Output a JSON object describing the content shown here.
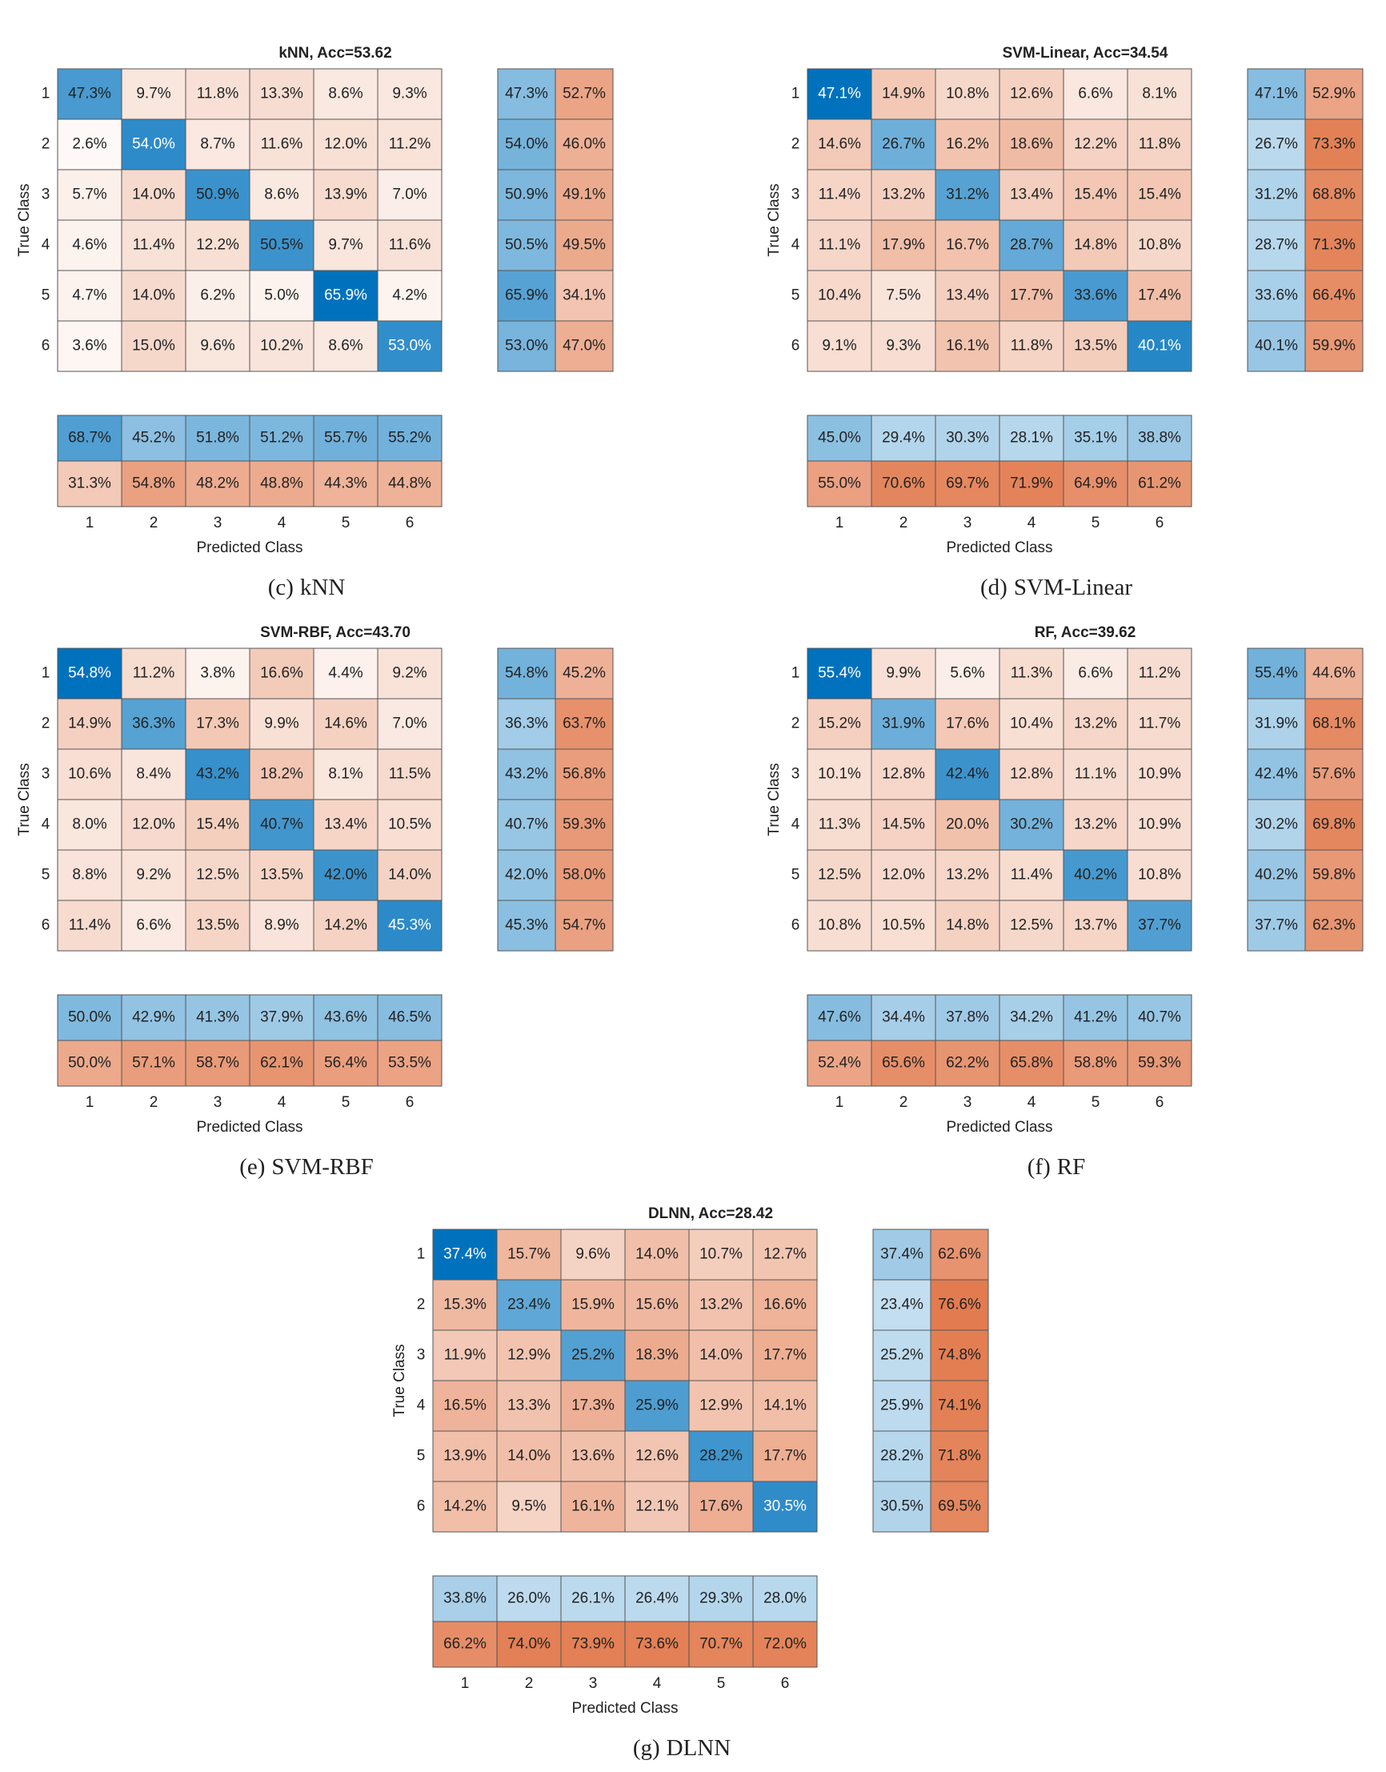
{
  "chart_data": [
    {
      "type": "confusion_matrix",
      "title": "kNN, Acc=53.62",
      "panel": "(c)",
      "caption": "kNN",
      "xlabel": "Predicted Class",
      "ylabel": "True Class",
      "classes": [
        "1",
        "2",
        "3",
        "4",
        "5",
        "6"
      ],
      "colors": {
        "correct": "#0072bd",
        "incorrect": "#d95319"
      },
      "values": [
        [
          47.3,
          9.7,
          11.8,
          13.3,
          8.6,
          9.3
        ],
        [
          2.6,
          54.0,
          8.7,
          11.6,
          12.0,
          11.2
        ],
        [
          5.7,
          14.0,
          50.9,
          8.6,
          13.9,
          7.0
        ],
        [
          4.6,
          11.4,
          12.2,
          50.5,
          9.7,
          11.6
        ],
        [
          4.7,
          14.0,
          6.2,
          5.0,
          65.9,
          4.2
        ],
        [
          3.6,
          15.0,
          9.6,
          10.2,
          8.6,
          53.0
        ]
      ],
      "value_labels": [
        [
          "47.3%",
          "9.7%",
          "11.8%",
          "13.3%",
          "8.6%",
          "9.3%"
        ],
        [
          "2.6%",
          "54.0%",
          "8.7%",
          "11.6%",
          "12.0%",
          "11.2%"
        ],
        [
          "5.7%",
          "14.0%",
          "50.9%",
          "8.6%",
          "13.9%",
          "7.0%"
        ],
        [
          "4.6%",
          "11.4%",
          "12.2%",
          "50.5%",
          "9.7%",
          "11.6%"
        ],
        [
          "4.7%",
          "14.0%",
          "6.2%",
          "5.0%",
          "65.9%",
          "4.2%"
        ],
        [
          "3.6%",
          "15.0%",
          "9.6%",
          "10.2%",
          "8.6%",
          "53.0%"
        ]
      ],
      "row_summary": {
        "values": [
          [
            47.3,
            52.7
          ],
          [
            54.0,
            46.0
          ],
          [
            50.9,
            49.1
          ],
          [
            50.5,
            49.5
          ],
          [
            65.9,
            34.1
          ],
          [
            53.0,
            47.0
          ]
        ],
        "value_labels": [
          [
            "47.3%",
            "52.7%"
          ],
          [
            "54.0%",
            "46.0%"
          ],
          [
            "50.9%",
            "49.1%"
          ],
          [
            "50.5%",
            "49.5%"
          ],
          [
            "65.9%",
            "34.1%"
          ],
          [
            "53.0%",
            "47.0%"
          ]
        ]
      },
      "column_summary": {
        "values": [
          [
            68.7,
            45.2,
            51.8,
            51.2,
            55.7,
            55.2
          ],
          [
            31.3,
            54.8,
            48.2,
            48.8,
            44.3,
            44.8
          ]
        ],
        "value_labels": [
          [
            "68.7%",
            "45.2%",
            "51.8%",
            "51.2%",
            "55.7%",
            "55.2%"
          ],
          [
            "31.3%",
            "54.8%",
            "48.2%",
            "48.8%",
            "44.3%",
            "44.8%"
          ]
        ]
      }
    },
    {
      "type": "confusion_matrix",
      "title": "SVM-Linear, Acc=34.54",
      "panel": "(d)",
      "caption": "SVM-Linear",
      "xlabel": "Predicted Class",
      "ylabel": "True Class",
      "classes": [
        "1",
        "2",
        "3",
        "4",
        "5",
        "6"
      ],
      "colors": {
        "correct": "#0072bd",
        "incorrect": "#d95319"
      },
      "values": [
        [
          47.1,
          14.9,
          10.8,
          12.6,
          6.6,
          8.1
        ],
        [
          14.6,
          26.7,
          16.2,
          18.6,
          12.2,
          11.8
        ],
        [
          11.4,
          13.2,
          31.2,
          13.4,
          15.4,
          15.4
        ],
        [
          11.1,
          17.9,
          16.7,
          28.7,
          14.8,
          10.8
        ],
        [
          10.4,
          7.5,
          13.4,
          17.7,
          33.6,
          17.4
        ],
        [
          9.1,
          9.3,
          16.1,
          11.8,
          13.5,
          40.1
        ]
      ],
      "value_labels": [
        [
          "47.1%",
          "14.9%",
          "10.8%",
          "12.6%",
          "6.6%",
          "8.1%"
        ],
        [
          "14.6%",
          "26.7%",
          "16.2%",
          "18.6%",
          "12.2%",
          "11.8%"
        ],
        [
          "11.4%",
          "13.2%",
          "31.2%",
          "13.4%",
          "15.4%",
          "15.4%"
        ],
        [
          "11.1%",
          "17.9%",
          "16.7%",
          "28.7%",
          "14.8%",
          "10.8%"
        ],
        [
          "10.4%",
          "7.5%",
          "13.4%",
          "17.7%",
          "33.6%",
          "17.4%"
        ],
        [
          "9.1%",
          "9.3%",
          "16.1%",
          "11.8%",
          "13.5%",
          "40.1%"
        ]
      ],
      "row_summary": {
        "values": [
          [
            47.1,
            52.9
          ],
          [
            26.7,
            73.3
          ],
          [
            31.2,
            68.8
          ],
          [
            28.7,
            71.3
          ],
          [
            33.6,
            66.4
          ],
          [
            40.1,
            59.9
          ]
        ],
        "value_labels": [
          [
            "47.1%",
            "52.9%"
          ],
          [
            "26.7%",
            "73.3%"
          ],
          [
            "31.2%",
            "68.8%"
          ],
          [
            "28.7%",
            "71.3%"
          ],
          [
            "33.6%",
            "66.4%"
          ],
          [
            "40.1%",
            "59.9%"
          ]
        ]
      },
      "column_summary": {
        "values": [
          [
            45.0,
            29.4,
            30.3,
            28.1,
            35.1,
            38.8
          ],
          [
            55.0,
            70.6,
            69.7,
            71.9,
            64.9,
            61.2
          ]
        ],
        "value_labels": [
          [
            "45.0%",
            "29.4%",
            "30.3%",
            "28.1%",
            "35.1%",
            "38.8%"
          ],
          [
            "55.0%",
            "70.6%",
            "69.7%",
            "71.9%",
            "64.9%",
            "61.2%"
          ]
        ]
      }
    },
    {
      "type": "confusion_matrix",
      "title": "SVM-RBF, Acc=43.70",
      "panel": "(e)",
      "caption": "SVM-RBF",
      "xlabel": "Predicted Class",
      "ylabel": "True Class",
      "classes": [
        "1",
        "2",
        "3",
        "4",
        "5",
        "6"
      ],
      "colors": {
        "correct": "#0072bd",
        "incorrect": "#d95319"
      },
      "values": [
        [
          54.8,
          11.2,
          3.8,
          16.6,
          4.4,
          9.2
        ],
        [
          14.9,
          36.3,
          17.3,
          9.9,
          14.6,
          7.0
        ],
        [
          10.6,
          8.4,
          43.2,
          18.2,
          8.1,
          11.5
        ],
        [
          8.0,
          12.0,
          15.4,
          40.7,
          13.4,
          10.5
        ],
        [
          8.8,
          9.2,
          12.5,
          13.5,
          42.0,
          14.0
        ],
        [
          11.4,
          6.6,
          13.5,
          8.9,
          14.2,
          45.3
        ]
      ],
      "value_labels": [
        [
          "54.8%",
          "11.2%",
          "3.8%",
          "16.6%",
          "4.4%",
          "9.2%"
        ],
        [
          "14.9%",
          "36.3%",
          "17.3%",
          "9.9%",
          "14.6%",
          "7.0%"
        ],
        [
          "10.6%",
          "8.4%",
          "43.2%",
          "18.2%",
          "8.1%",
          "11.5%"
        ],
        [
          "8.0%",
          "12.0%",
          "15.4%",
          "40.7%",
          "13.4%",
          "10.5%"
        ],
        [
          "8.8%",
          "9.2%",
          "12.5%",
          "13.5%",
          "42.0%",
          "14.0%"
        ],
        [
          "11.4%",
          "6.6%",
          "13.5%",
          "8.9%",
          "14.2%",
          "45.3%"
        ]
      ],
      "row_summary": {
        "values": [
          [
            54.8,
            45.2
          ],
          [
            36.3,
            63.7
          ],
          [
            43.2,
            56.8
          ],
          [
            40.7,
            59.3
          ],
          [
            42.0,
            58.0
          ],
          [
            45.3,
            54.7
          ]
        ],
        "value_labels": [
          [
            "54.8%",
            "45.2%"
          ],
          [
            "36.3%",
            "63.7%"
          ],
          [
            "43.2%",
            "56.8%"
          ],
          [
            "40.7%",
            "59.3%"
          ],
          [
            "42.0%",
            "58.0%"
          ],
          [
            "45.3%",
            "54.7%"
          ]
        ]
      },
      "column_summary": {
        "values": [
          [
            50.0,
            42.9,
            41.3,
            37.9,
            43.6,
            46.5
          ],
          [
            50.0,
            57.1,
            58.7,
            62.1,
            56.4,
            53.5
          ]
        ],
        "value_labels": [
          [
            "50.0%",
            "42.9%",
            "41.3%",
            "37.9%",
            "43.6%",
            "46.5%"
          ],
          [
            "50.0%",
            "57.1%",
            "58.7%",
            "62.1%",
            "56.4%",
            "53.5%"
          ]
        ]
      }
    },
    {
      "type": "confusion_matrix",
      "title": "RF, Acc=39.62",
      "panel": "(f)",
      "caption": "RF",
      "xlabel": "Predicted Class",
      "ylabel": "True Class",
      "classes": [
        "1",
        "2",
        "3",
        "4",
        "5",
        "6"
      ],
      "colors": {
        "correct": "#0072bd",
        "incorrect": "#d95319"
      },
      "values": [
        [
          55.4,
          9.9,
          5.6,
          11.3,
          6.6,
          11.2
        ],
        [
          15.2,
          31.9,
          17.6,
          10.4,
          13.2,
          11.7
        ],
        [
          10.1,
          12.8,
          42.4,
          12.8,
          11.1,
          10.9
        ],
        [
          11.3,
          14.5,
          20.0,
          30.2,
          13.2,
          10.9
        ],
        [
          12.5,
          12.0,
          13.2,
          11.4,
          40.2,
          10.8
        ],
        [
          10.8,
          10.5,
          14.8,
          12.5,
          13.7,
          37.7
        ]
      ],
      "value_labels": [
        [
          "55.4%",
          "9.9%",
          "5.6%",
          "11.3%",
          "6.6%",
          "11.2%"
        ],
        [
          "15.2%",
          "31.9%",
          "17.6%",
          "10.4%",
          "13.2%",
          "11.7%"
        ],
        [
          "10.1%",
          "12.8%",
          "42.4%",
          "12.8%",
          "11.1%",
          "10.9%"
        ],
        [
          "11.3%",
          "14.5%",
          "20.0%",
          "30.2%",
          "13.2%",
          "10.9%"
        ],
        [
          "12.5%",
          "12.0%",
          "13.2%",
          "11.4%",
          "40.2%",
          "10.8%"
        ],
        [
          "10.8%",
          "10.5%",
          "14.8%",
          "12.5%",
          "13.7%",
          "37.7%"
        ]
      ],
      "row_summary": {
        "values": [
          [
            55.4,
            44.6
          ],
          [
            31.9,
            68.1
          ],
          [
            42.4,
            57.6
          ],
          [
            30.2,
            69.8
          ],
          [
            40.2,
            59.8
          ],
          [
            37.7,
            62.3
          ]
        ],
        "value_labels": [
          [
            "55.4%",
            "44.6%"
          ],
          [
            "31.9%",
            "68.1%"
          ],
          [
            "42.4%",
            "57.6%"
          ],
          [
            "30.2%",
            "69.8%"
          ],
          [
            "40.2%",
            "59.8%"
          ],
          [
            "37.7%",
            "62.3%"
          ]
        ]
      },
      "column_summary": {
        "values": [
          [
            47.6,
            34.4,
            37.8,
            34.2,
            41.2,
            40.7
          ],
          [
            52.4,
            65.6,
            62.2,
            65.8,
            58.8,
            59.3
          ]
        ],
        "value_labels": [
          [
            "47.6%",
            "34.4%",
            "37.8%",
            "34.2%",
            "41.2%",
            "40.7%"
          ],
          [
            "52.4%",
            "65.6%",
            "62.2%",
            "65.8%",
            "58.8%",
            "59.3%"
          ]
        ]
      }
    },
    {
      "type": "confusion_matrix",
      "title": "DLNN, Acc=28.42",
      "panel": "(g)",
      "caption": "DLNN",
      "xlabel": "Predicted Class",
      "ylabel": "True Class",
      "classes": [
        "1",
        "2",
        "3",
        "4",
        "5",
        "6"
      ],
      "colors": {
        "correct": "#0072bd",
        "incorrect": "#d95319"
      },
      "values": [
        [
          37.4,
          15.7,
          9.6,
          14.0,
          10.7,
          12.7
        ],
        [
          15.3,
          23.4,
          15.9,
          15.6,
          13.2,
          16.6
        ],
        [
          11.9,
          12.9,
          25.2,
          18.3,
          14.0,
          17.7
        ],
        [
          16.5,
          13.3,
          17.3,
          25.9,
          12.9,
          14.1
        ],
        [
          13.9,
          14.0,
          13.6,
          12.6,
          28.2,
          17.7
        ],
        [
          14.2,
          9.5,
          16.1,
          12.1,
          17.6,
          30.5
        ]
      ],
      "value_labels": [
        [
          "37.4%",
          "15.7%",
          "9.6%",
          "14.0%",
          "10.7%",
          "12.7%"
        ],
        [
          "15.3%",
          "23.4%",
          "15.9%",
          "15.6%",
          "13.2%",
          "16.6%"
        ],
        [
          "11.9%",
          "12.9%",
          "25.2%",
          "18.3%",
          "14.0%",
          "17.7%"
        ],
        [
          "16.5%",
          "13.3%",
          "17.3%",
          "25.9%",
          "12.9%",
          "14.1%"
        ],
        [
          "13.9%",
          "14.0%",
          "13.6%",
          "12.6%",
          "28.2%",
          "17.7%"
        ],
        [
          "14.2%",
          "9.5%",
          "16.1%",
          "12.1%",
          "17.6%",
          "30.5%"
        ]
      ],
      "row_summary": {
        "values": [
          [
            37.4,
            62.6
          ],
          [
            23.4,
            76.6
          ],
          [
            25.2,
            74.8
          ],
          [
            25.9,
            74.1
          ],
          [
            28.2,
            71.8
          ],
          [
            30.5,
            69.5
          ]
        ],
        "value_labels": [
          [
            "37.4%",
            "62.6%"
          ],
          [
            "23.4%",
            "76.6%"
          ],
          [
            "25.2%",
            "74.8%"
          ],
          [
            "25.9%",
            "74.1%"
          ],
          [
            "28.2%",
            "71.8%"
          ],
          [
            "30.5%",
            "69.5%"
          ]
        ]
      },
      "column_summary": {
        "values": [
          [
            33.8,
            26.0,
            26.1,
            26.4,
            29.3,
            28.0
          ],
          [
            66.2,
            74.0,
            73.9,
            73.6,
            70.7,
            72.0
          ]
        ],
        "value_labels": [
          [
            "33.8%",
            "26.0%",
            "26.1%",
            "26.4%",
            "29.3%",
            "28.0%"
          ],
          [
            "66.2%",
            "74.0%",
            "73.9%",
            "73.6%",
            "70.7%",
            "72.0%"
          ]
        ]
      }
    }
  ]
}
